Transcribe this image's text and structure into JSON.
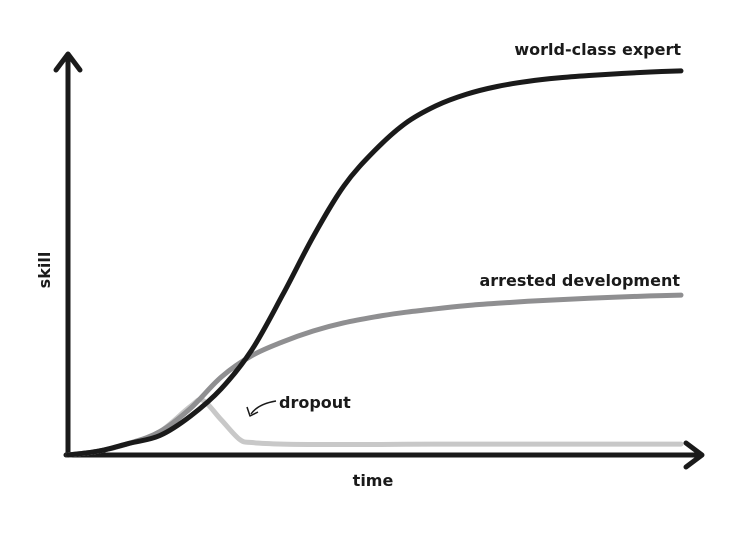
{
  "chart_data": {
    "type": "line",
    "xlabel": "time",
    "ylabel": "skill",
    "xlim": [
      0,
      100
    ],
    "ylim": [
      0,
      100
    ],
    "grid": false,
    "legend": "none",
    "series": [
      {
        "name": "world-class expert",
        "color": "#1a1a1a",
        "x": [
          0,
          5,
          10,
          15,
          20,
          25,
          30,
          35,
          40,
          45,
          50,
          55,
          60,
          65,
          70,
          75,
          80,
          85,
          90,
          95,
          100
        ],
        "y": [
          0,
          1,
          3,
          5,
          10,
          17,
          27,
          41,
          56,
          69,
          78,
          85,
          89.5,
          92.5,
          94.5,
          95.8,
          96.7,
          97.3,
          97.8,
          98.2,
          98.5
        ]
      },
      {
        "name": "arrested development",
        "color": "#8f8f91",
        "x": [
          0,
          5,
          10,
          15,
          20,
          25,
          30,
          35,
          40,
          45,
          50,
          55,
          60,
          65,
          70,
          75,
          80,
          85,
          90,
          95,
          100
        ],
        "y": [
          0,
          1,
          3,
          6,
          12,
          20,
          25.5,
          29,
          31.8,
          33.9,
          35.4,
          36.6,
          37.5,
          38.3,
          38.9,
          39.4,
          39.8,
          40.2,
          40.5,
          40.8,
          41
        ]
      },
      {
        "name": "dropout",
        "color": "#c8c8c8",
        "x": [
          0,
          5,
          10,
          15,
          20,
          22,
          25,
          28,
          30,
          35,
          40,
          50,
          60,
          70,
          80,
          90,
          100
        ],
        "y": [
          0,
          1,
          3,
          6,
          12.5,
          14,
          9,
          4,
          3.2,
          2.8,
          2.7,
          2.7,
          2.8,
          2.8,
          2.8,
          2.8,
          2.8
        ]
      }
    ],
    "annotations": [
      {
        "text": "world-class expert",
        "series": 0
      },
      {
        "text": "arrested development",
        "series": 1
      },
      {
        "text": "dropout",
        "series": 2
      }
    ]
  }
}
